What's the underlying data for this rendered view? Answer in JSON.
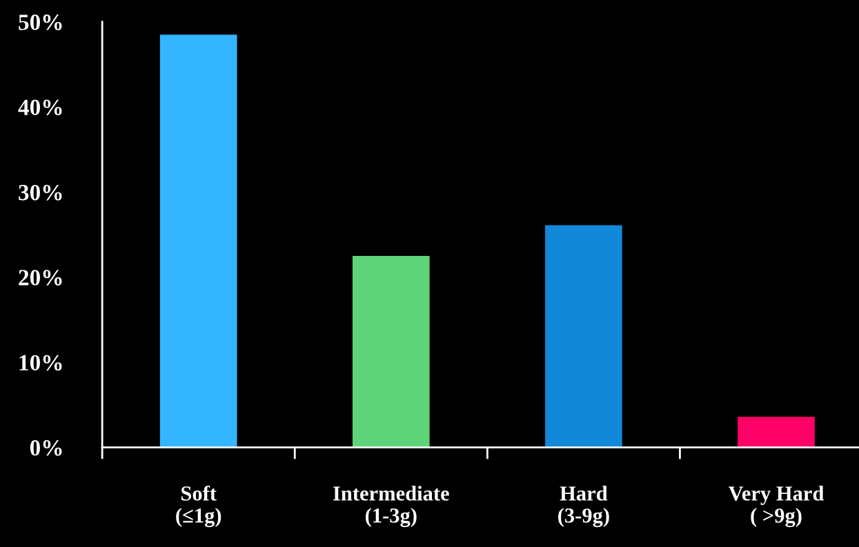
{
  "chart_data": {
    "type": "bar",
    "categories": [
      "Soft\n(≤1g)",
      "Intermediate\n(1-3g)",
      "Hard\n(3-9g)",
      "Very Hard\n( >9g)"
    ],
    "values": [
      48.5,
      22.5,
      26.1,
      3.6
    ],
    "colors": [
      "#33b5ff",
      "#5dd37a",
      "#1188d8",
      "#ff0066"
    ],
    "ylim": [
      0,
      50
    ],
    "yticks": [
      {
        "value": 0,
        "label": "0%"
      },
      {
        "value": 10,
        "label": "10%"
      },
      {
        "value": 20,
        "label": "20%"
      },
      {
        "value": 30,
        "label": "30%"
      },
      {
        "value": 40,
        "label": "40%"
      },
      {
        "value": 50,
        "label": "50%"
      }
    ],
    "grid": false,
    "legend": false
  }
}
